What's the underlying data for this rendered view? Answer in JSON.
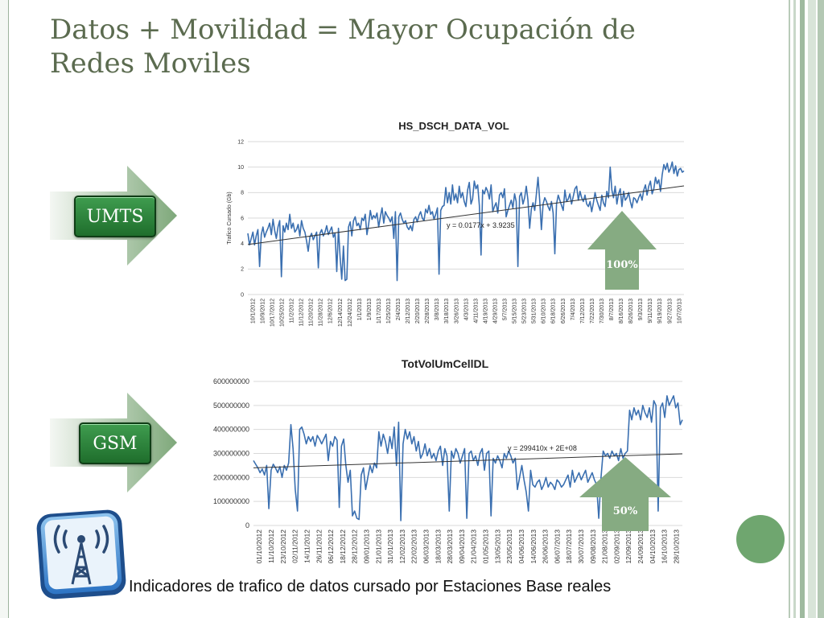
{
  "slide": {
    "title": "Datos + Movilidad = Mayor Ocupación de Redes Moviles",
    "caption": "Indicadores de trafico de datos cursado por Estaciones Base reales",
    "colors": {
      "title": "#5b6b4f",
      "series": "#3a6fb0",
      "arrow_green": "#7ea87a",
      "badge_green": "#2c8a3c"
    }
  },
  "labels": {
    "umts": "UMTS",
    "gsm": "GSM",
    "umts_increase": "100%",
    "gsm_increase": "50%"
  },
  "icons": [
    "right-arrow-icon",
    "up-arrow-icon",
    "wireless-tower-icon",
    "circle-decoration"
  ],
  "chart_data": [
    {
      "type": "line",
      "title": "HS_DSCH_DATA_VOL",
      "xlabel": "",
      "ylabel": "Trafico Cursado (Gb)",
      "ylim": [
        0,
        12
      ],
      "y_ticks": [
        0,
        2,
        4,
        6,
        8,
        10,
        12
      ],
      "grid": true,
      "trendline": {
        "label": "y = 0.0177x + 3.9235",
        "slope": 0.0177,
        "intercept": 3.9235
      },
      "x_tick_labels": [
        "10/1/2012",
        "10/9/2012",
        "10/17/2012",
        "10/25/2012",
        "11/2/2012",
        "11/12/2012",
        "11/20/2012",
        "11/28/2012",
        "12/6/2012",
        "12/14/2012",
        "12/24/2012",
        "1/1/2013",
        "1/9/2013",
        "1/17/2013",
        "1/25/2013",
        "2/4/2013",
        "2/12/2013",
        "2/20/2013",
        "2/28/2013",
        "3/8/2013",
        "3/18/2013",
        "3/26/2013",
        "4/3/2013",
        "4/11/2013",
        "4/19/2013",
        "4/29/2013",
        "5/7/2013",
        "5/15/2013",
        "5/23/2013",
        "5/31/2013",
        "6/10/2013",
        "6/18/2013",
        "6/26/2013",
        "7/4/2013",
        "7/12/2013",
        "7/22/2013",
        "7/30/2013",
        "8/7/2013",
        "8/16/2013",
        "8/26/2013",
        "9/3/2013",
        "9/11/2013",
        "9/19/2013",
        "9/27/2013",
        "10/7/2013"
      ],
      "series": [
        {
          "values": [
            4.8,
            3.9,
            4.4,
            4.9,
            3.9,
            4.6,
            5.1,
            2.2,
            4.7,
            5.3,
            4.5,
            4.9,
            5.2,
            5.6,
            4.7,
            5.9,
            5.0,
            4.4,
            5.3,
            5.8,
            1.4,
            5.4,
            4.9,
            5.6,
            5.1,
            6.3,
            5.2,
            5.6,
            4.9,
            5.1,
            5.5,
            4.6,
            5.8,
            5.2,
            4.9,
            4.2,
            3.4,
            4.5,
            4.8,
            4.3,
            4.6,
            4.9,
            2.1,
            4.8,
            5.1,
            4.6,
            4.9,
            5.4,
            4.7,
            5.0,
            5.3,
            4.5,
            4.8,
            1.8,
            5.2,
            2.9,
            1.2,
            3.8,
            1.1,
            1.2,
            5.3,
            5.7,
            4.6,
            5.8,
            6.1,
            5.4,
            5.6,
            5.1,
            6.0,
            5.8,
            6.3,
            4.7,
            5.5,
            6.6,
            5.9,
            6.2,
            6.0,
            6.4,
            5.3,
            6.1,
            6.8,
            5.6,
            6.5,
            6.2,
            6.0,
            5.7,
            6.1,
            4.4,
            6.5,
            1.1,
            6.1,
            6.4,
            5.9,
            5.6,
            5.8,
            5.3,
            5.1,
            5.4,
            5.0,
            5.9,
            6.1,
            5.7,
            6.2,
            6.5,
            6.0,
            5.8,
            6.7,
            6.4,
            7.0,
            6.3,
            6.5,
            5.9,
            6.3,
            6.8,
            1.6,
            6.6,
            6.9,
            7.0,
            8.4,
            7.2,
            8.0,
            7.1,
            8.6,
            7.4,
            7.9,
            7.2,
            8.5,
            7.6,
            8.0,
            7.3,
            6.9,
            8.2,
            8.8,
            7.1,
            7.5,
            8.9,
            8.3,
            8.6,
            7.0,
            3.1,
            8.2,
            7.9,
            8.4,
            8.1,
            7.5,
            8.6,
            6.5,
            6.9,
            7.2,
            6.4,
            7.8,
            8.0,
            7.6,
            8.3,
            6.1,
            6.6,
            7.0,
            7.4,
            6.8,
            7.9,
            7.3,
            2.2,
            7.7,
            8.0,
            7.1,
            7.6,
            8.5,
            7.4,
            5.2,
            6.7,
            7.2,
            6.6,
            7.9,
            9.2,
            7.4,
            5.1,
            7.1,
            7.6,
            7.3,
            6.9,
            6.6,
            7.3,
            6.4,
            3.2,
            7.1,
            7.8,
            7.4,
            7.0,
            6.6,
            8.2,
            7.3,
            7.5,
            7.9,
            7.1,
            7.7,
            8.3,
            8.5,
            7.4,
            8.1,
            7.6,
            7.3,
            7.8,
            7.1,
            6.9,
            7.3,
            6.5,
            7.2,
            8.0,
            7.4,
            7.0,
            6.6,
            7.8,
            7.2,
            6.9,
            8.1,
            7.6,
            10.0,
            8.2,
            7.6,
            8.5,
            7.1,
            7.9,
            8.3,
            6.9,
            8.1,
            7.4,
            7.6,
            8.0,
            7.3,
            6.8,
            7.6,
            7.5,
            7.2,
            7.6,
            7.9,
            7.4,
            8.2,
            8.6,
            7.8,
            8.5,
            8.9,
            7.9,
            8.3,
            9.2,
            8.7,
            9.0,
            8.1,
            9.4,
            10.2,
            9.8,
            10.3,
            9.6,
            9.9,
            10.4,
            9.5,
            10.1,
            9.3,
            9.8,
            9.9,
            9.6,
            9.7
          ]
        }
      ]
    },
    {
      "type": "line",
      "title": "TotVolUmCellDL",
      "xlabel": "",
      "ylabel": "",
      "ylim": [
        0,
        600000000
      ],
      "y_ticks": [
        0,
        100000000,
        200000000,
        300000000,
        400000000,
        500000000,
        600000000
      ],
      "grid": true,
      "trendline": {
        "label": "y = 299410x + 2E+08",
        "slope": 299410,
        "intercept": 240000000
      },
      "x_tick_labels": [
        "01/10/2012",
        "11/10/2012",
        "23/10/2012",
        "02/11/2012",
        "14/11/2012",
        "26/11/2012",
        "06/12/2012",
        "18/12/2012",
        "28/12/2012",
        "09/01/2013",
        "21/01/2013",
        "31/01/2013",
        "12/02/2013",
        "22/02/2013",
        "06/03/2013",
        "18/03/2013",
        "28/03/2013",
        "09/04/2013",
        "21/04/2013",
        "01/05/2013",
        "13/05/2013",
        "23/05/2013",
        "04/06/2013",
        "14/06/2013",
        "26/06/2013",
        "06/07/2013",
        "18/07/2013",
        "30/07/2013",
        "09/08/2013",
        "21/08/2013",
        "02/09/2013",
        "12/09/2013",
        "24/09/2013",
        "04/10/2013",
        "16/10/2013",
        "28/10/2013"
      ],
      "series": [
        {
          "values": [
            270000000,
            255000000,
            240000000,
            220000000,
            235000000,
            210000000,
            250000000,
            70000000,
            230000000,
            255000000,
            240000000,
            220000000,
            245000000,
            200000000,
            250000000,
            230000000,
            260000000,
            420000000,
            320000000,
            150000000,
            60000000,
            400000000,
            410000000,
            380000000,
            340000000,
            370000000,
            350000000,
            370000000,
            330000000,
            375000000,
            360000000,
            340000000,
            360000000,
            380000000,
            270000000,
            350000000,
            330000000,
            370000000,
            355000000,
            75000000,
            330000000,
            360000000,
            250000000,
            180000000,
            230000000,
            40000000,
            60000000,
            30000000,
            25000000,
            210000000,
            240000000,
            150000000,
            200000000,
            250000000,
            220000000,
            260000000,
            240000000,
            390000000,
            330000000,
            380000000,
            350000000,
            300000000,
            370000000,
            320000000,
            410000000,
            250000000,
            430000000,
            20000000,
            340000000,
            400000000,
            360000000,
            390000000,
            340000000,
            370000000,
            310000000,
            350000000,
            280000000,
            300000000,
            340000000,
            290000000,
            320000000,
            280000000,
            300000000,
            270000000,
            310000000,
            330000000,
            250000000,
            320000000,
            290000000,
            60000000,
            310000000,
            280000000,
            320000000,
            300000000,
            260000000,
            290000000,
            320000000,
            30000000,
            300000000,
            310000000,
            270000000,
            290000000,
            250000000,
            300000000,
            320000000,
            230000000,
            300000000,
            310000000,
            40000000,
            280000000,
            260000000,
            290000000,
            270000000,
            240000000,
            300000000,
            280000000,
            310000000,
            290000000,
            260000000,
            280000000,
            150000000,
            200000000,
            250000000,
            190000000,
            140000000,
            60000000,
            230000000,
            170000000,
            160000000,
            180000000,
            190000000,
            150000000,
            170000000,
            200000000,
            160000000,
            180000000,
            170000000,
            150000000,
            190000000,
            180000000,
            160000000,
            170000000,
            190000000,
            210000000,
            160000000,
            230000000,
            180000000,
            200000000,
            220000000,
            190000000,
            210000000,
            230000000,
            180000000,
            200000000,
            220000000,
            190000000,
            170000000,
            30000000,
            200000000,
            310000000,
            290000000,
            300000000,
            280000000,
            310000000,
            290000000,
            300000000,
            270000000,
            320000000,
            280000000,
            300000000,
            310000000,
            480000000,
            440000000,
            490000000,
            460000000,
            480000000,
            440000000,
            500000000,
            470000000,
            450000000,
            490000000,
            430000000,
            520000000,
            500000000,
            60000000,
            490000000,
            510000000,
            450000000,
            540000000,
            500000000,
            520000000,
            540000000,
            490000000,
            510000000,
            420000000,
            440000000
          ]
        }
      ]
    }
  ]
}
